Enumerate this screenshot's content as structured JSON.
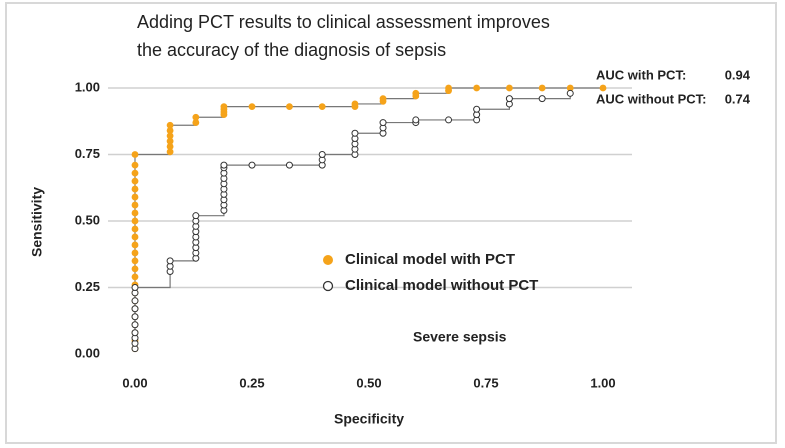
{
  "chart_data": {
    "type": "step-scatter",
    "title_lines": [
      "Adding PCT results to clinical assessment improves",
      "the accuracy of the diagnosis of sepsis"
    ],
    "x_label": "Specificity",
    "y_label": "Sensitivity",
    "annotation": "Severe sepsis",
    "auc": [
      {
        "label": "AUC with PCT:",
        "value": 0.94
      },
      {
        "label": "AUC without PCT:",
        "value": 0.74
      }
    ],
    "xlim": [
      0,
      1
    ],
    "ylim": [
      0,
      1
    ],
    "xticks": [
      {
        "value": 0,
        "label": "0.00"
      },
      {
        "value": 0.25,
        "label": "0.25"
      },
      {
        "value": 0.5,
        "label": "0.50"
      },
      {
        "value": 0.75,
        "label": "0.75"
      },
      {
        "value": 1,
        "label": "1.00"
      }
    ],
    "yticks": [
      {
        "value": 0,
        "label": "0.00"
      },
      {
        "value": 0.25,
        "label": "0.25"
      },
      {
        "value": 0.5,
        "label": "0.50"
      },
      {
        "value": 0.75,
        "label": "0.75"
      },
      {
        "value": 1,
        "label": "1.00"
      }
    ],
    "grid": "y",
    "line_color": "#777777",
    "series": [
      {
        "name": "Clinical model with PCT",
        "color": "#f5a31a",
        "marker": "filled",
        "x": [
          0,
          0,
          0,
          0,
          0,
          0,
          0,
          0,
          0,
          0,
          0,
          0,
          0,
          0,
          0,
          0,
          0,
          0,
          0,
          0,
          0,
          0,
          0,
          0,
          0,
          0.075,
          0.075,
          0.075,
          0.075,
          0.075,
          0.075,
          0.13,
          0.13,
          0.19,
          0.19,
          0.19,
          0.19,
          0.25,
          0.33,
          0.4,
          0.47,
          0.47,
          0.53,
          0.53,
          0.6,
          0.6,
          0.67,
          0.67,
          0.73,
          0.8,
          0.87,
          0.93,
          1
        ],
        "values": [
          0.02,
          0.05,
          0.08,
          0.11,
          0.14,
          0.17,
          0.2,
          0.23,
          0.26,
          0.29,
          0.32,
          0.35,
          0.38,
          0.41,
          0.44,
          0.47,
          0.5,
          0.53,
          0.56,
          0.59,
          0.62,
          0.65,
          0.68,
          0.71,
          0.75,
          0.76,
          0.78,
          0.8,
          0.82,
          0.84,
          0.86,
          0.87,
          0.89,
          0.9,
          0.91,
          0.92,
          0.93,
          0.93,
          0.93,
          0.93,
          0.93,
          0.94,
          0.95,
          0.96,
          0.97,
          0.98,
          0.99,
          1,
          1,
          1,
          1,
          1,
          1
        ]
      },
      {
        "name": "Clinical model without PCT",
        "color": "#333333",
        "marker": "open",
        "x": [
          0,
          0,
          0,
          0,
          0,
          0,
          0,
          0,
          0,
          0,
          0.075,
          0.075,
          0.075,
          0.13,
          0.13,
          0.13,
          0.13,
          0.13,
          0.13,
          0.13,
          0.13,
          0.13,
          0.19,
          0.19,
          0.19,
          0.19,
          0.19,
          0.19,
          0.19,
          0.19,
          0.19,
          0.19,
          0.25,
          0.33,
          0.4,
          0.4,
          0.4,
          0.47,
          0.47,
          0.47,
          0.47,
          0.47,
          0.53,
          0.53,
          0.53,
          0.6,
          0.6,
          0.67,
          0.73,
          0.73,
          0.73,
          0.8,
          0.8,
          0.87,
          0.93
        ],
        "values": [
          0.02,
          0.04,
          0.06,
          0.08,
          0.11,
          0.14,
          0.17,
          0.2,
          0.23,
          0.25,
          0.31,
          0.33,
          0.35,
          0.36,
          0.38,
          0.4,
          0.42,
          0.44,
          0.46,
          0.48,
          0.5,
          0.52,
          0.54,
          0.56,
          0.58,
          0.6,
          0.62,
          0.64,
          0.66,
          0.68,
          0.7,
          0.71,
          0.71,
          0.71,
          0.71,
          0.73,
          0.75,
          0.75,
          0.77,
          0.79,
          0.81,
          0.83,
          0.83,
          0.85,
          0.87,
          0.87,
          0.88,
          0.88,
          0.88,
          0.9,
          0.92,
          0.94,
          0.96,
          0.96,
          0.98
        ]
      }
    ]
  }
}
